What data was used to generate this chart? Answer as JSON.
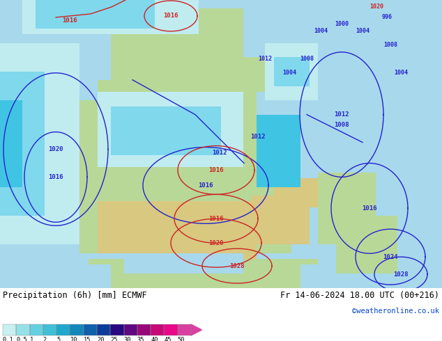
{
  "title_left": "Precipitation (6h) [mm] ECMWF",
  "title_right": "Fr 14-06-2024 18.00 UTC (00+216)",
  "credit": "©weatheronline.co.uk",
  "colorbar_levels": [
    "0.1",
    "0.5",
    "1",
    "2",
    "5",
    "10",
    "15",
    "20",
    "25",
    "30",
    "35",
    "40",
    "45",
    "50"
  ],
  "colorbar_colors": [
    "#c8f0f0",
    "#96e0e8",
    "#64d0e0",
    "#40c0d8",
    "#20a8cc",
    "#1488bb",
    "#1060aa",
    "#0c3c99",
    "#280880",
    "#600880",
    "#980878",
    "#c80878",
    "#e80888",
    "#d840a0"
  ],
  "ocean_color": "#a8d8ec",
  "prec_very_light": "#c0ecf0",
  "prec_light": "#80d8ec",
  "prec_medium_light": "#40c4e4",
  "prec_medium": "#20a0d0",
  "land_green": "#b8d898",
  "land_dry": "#d8c880",
  "footer_bg": "#ffffff",
  "label_fontsize": 8.5,
  "credit_color": "#0044cc",
  "isobar_blue": "#2222cc",
  "isobar_red": "#cc2222"
}
